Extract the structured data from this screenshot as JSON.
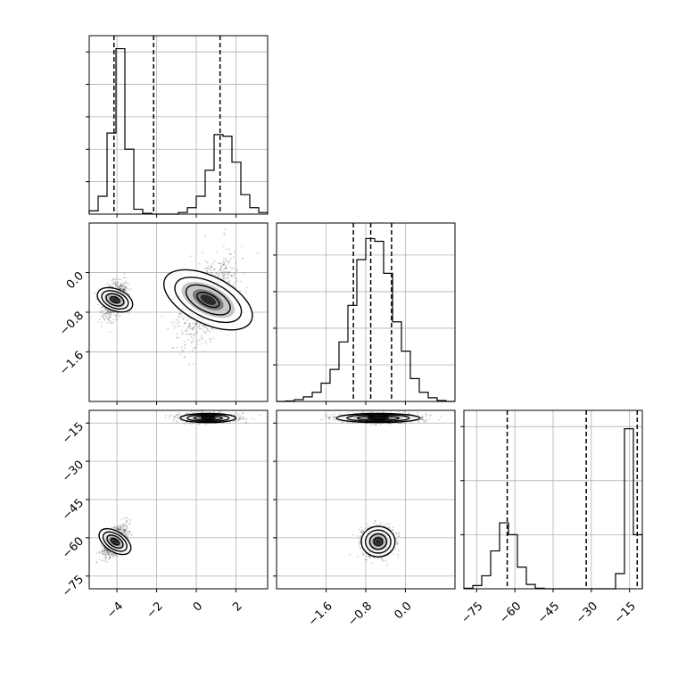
{
  "chart_data": {
    "type": "corner",
    "grid": true,
    "params": [
      {
        "ticks": [
          -4,
          -2,
          0,
          2
        ],
        "tick_labels": [
          "−4",
          "−2",
          "0",
          "2"
        ],
        "xlim": [
          -5.4,
          3.6
        ],
        "quantiles": [
          -4.15,
          -2.15,
          1.2
        ]
      },
      {
        "ticks": [
          -1.6,
          -0.8,
          0.0
        ],
        "tick_labels": [
          "−1.6",
          "−0.8",
          "0.0"
        ],
        "xlim": [
          -2.6,
          1.0
        ],
        "quantiles": [
          -1.05,
          -0.7,
          -0.28
        ]
      },
      {
        "ticks": [
          -75,
          -60,
          -45,
          -30,
          -15
        ],
        "tick_labels": [
          "−75",
          "−60",
          "−45",
          "−30",
          "−15"
        ],
        "xlim": [
          -80,
          -10
        ],
        "quantiles": [
          -63,
          -32,
          -12
        ]
      }
    ],
    "histograms": [
      {
        "bin_edges": [
          -5.4,
          -4.95,
          -4.5,
          -4.05,
          -3.6,
          -3.15,
          -2.7,
          -2.25,
          -1.8,
          -1.35,
          -0.9,
          -0.45,
          0.0,
          0.45,
          0.9,
          1.35,
          1.8,
          2.25,
          2.7,
          3.15,
          3.6
        ],
        "counts": [
          0.2,
          1.1,
          5.0,
          10.2,
          4.0,
          0.3,
          0.05,
          0.0,
          0.0,
          0.0,
          0.1,
          0.4,
          1.1,
          2.7,
          4.9,
          4.8,
          3.2,
          1.2,
          0.4,
          0.1
        ],
        "ymax": 11.0,
        "ytick_values": [
          2,
          4,
          6,
          8,
          10
        ]
      },
      {
        "bin_edges": [
          -2.6,
          -2.42,
          -2.24,
          -2.06,
          -1.88,
          -1.7,
          -1.52,
          -1.34,
          -1.16,
          -0.98,
          -0.8,
          -0.62,
          -0.44,
          -0.26,
          -0.08,
          0.1,
          0.28,
          0.46,
          0.64,
          0.82,
          1.0
        ],
        "counts": [
          0.0,
          0.05,
          0.2,
          0.5,
          1.0,
          2.0,
          3.5,
          6.5,
          10.5,
          15.5,
          17.8,
          17.5,
          14.0,
          8.7,
          5.5,
          2.5,
          1.0,
          0.4,
          0.1,
          0.0
        ],
        "ymax": 19.5,
        "ytick_values": [
          4,
          8,
          12,
          16
        ]
      },
      {
        "bin_edges": [
          -80,
          -76.5,
          -73,
          -69.5,
          -66,
          -62.5,
          -59,
          -55.5,
          -52,
          -48.5,
          -45,
          -41.5,
          -38,
          -34.5,
          -31,
          -27.5,
          -24,
          -20.5,
          -17,
          -13.5,
          -10
        ],
        "counts": [
          0.05,
          0.3,
          1.2,
          3.5,
          6.1,
          5.0,
          2.0,
          0.4,
          0.05,
          0.0,
          0.0,
          0.0,
          0.0,
          0.0,
          0.0,
          0.0,
          0.0,
          1.4,
          14.8,
          5.0
        ],
        "ymax": 16.5,
        "ytick_values": [
          5,
          10,
          15
        ]
      }
    ],
    "clusters": [
      {
        "mean": [
          -4.1,
          -0.55,
          -61.5
        ],
        "sd": [
          0.3,
          0.17,
          3.0
        ]
      },
      {
        "mean": [
          0.6,
          -0.55,
          -13.0
        ],
        "sd": [
          0.7,
          0.42,
          0.9
        ]
      }
    ],
    "cluster_weights": [
      0.46,
      0.54
    ],
    "correlations": {
      "0_1": [
        0.35,
        0.55
      ],
      "0_2": [
        0.6,
        0.0
      ],
      "1_2": [
        0.0,
        0.0
      ]
    },
    "scatter_points_per_panel": 1800
  }
}
